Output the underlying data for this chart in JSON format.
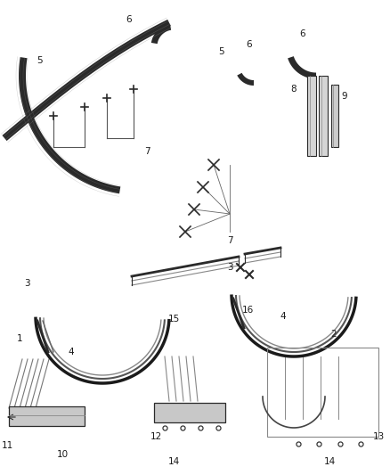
{
  "bg_color": "#ffffff",
  "line_color": "#2a2a2a",
  "label_color": "#1a1a1a",
  "lw_main": 2.5,
  "lw_inner": 1.0,
  "lw_thin": 0.6
}
